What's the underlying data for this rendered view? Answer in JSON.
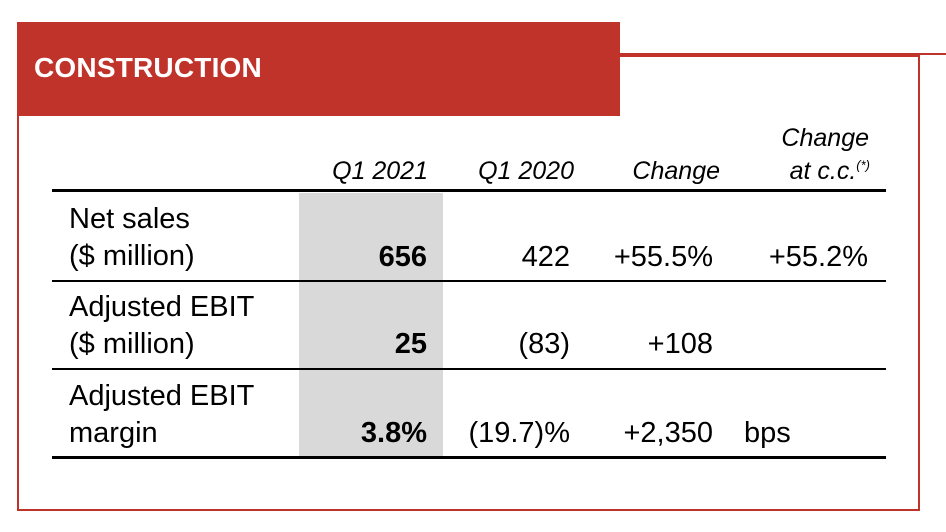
{
  "section_title": "CONSTRUCTION",
  "columns": {
    "q1_2021": "Q1 2021",
    "q1_2020": "Q1 2020",
    "change": "Change",
    "change_cc_line1": "Change",
    "change_cc_line2": "at c.c.",
    "change_cc_note": "(*)"
  },
  "rows": [
    {
      "label_line1": "Net sales",
      "label_line2": "($ million)",
      "q1_2021": "656",
      "q1_2020": "422",
      "change": "+55.5%",
      "change_cc": "+55.2%"
    },
    {
      "label_line1": "Adjusted EBIT",
      "label_line2": "($ million)",
      "q1_2021": "25",
      "q1_2020": "(83)",
      "change": "+108",
      "change_cc": ""
    },
    {
      "label_line1": "Adjusted EBIT",
      "label_line2": "margin",
      "q1_2021": "3.8%",
      "q1_2020": "(19.7)%",
      "change": "+2,350",
      "change_cc": "bps"
    }
  ],
  "colors": {
    "accent": "#c0332b",
    "highlight_column": "#d9d9d9"
  }
}
